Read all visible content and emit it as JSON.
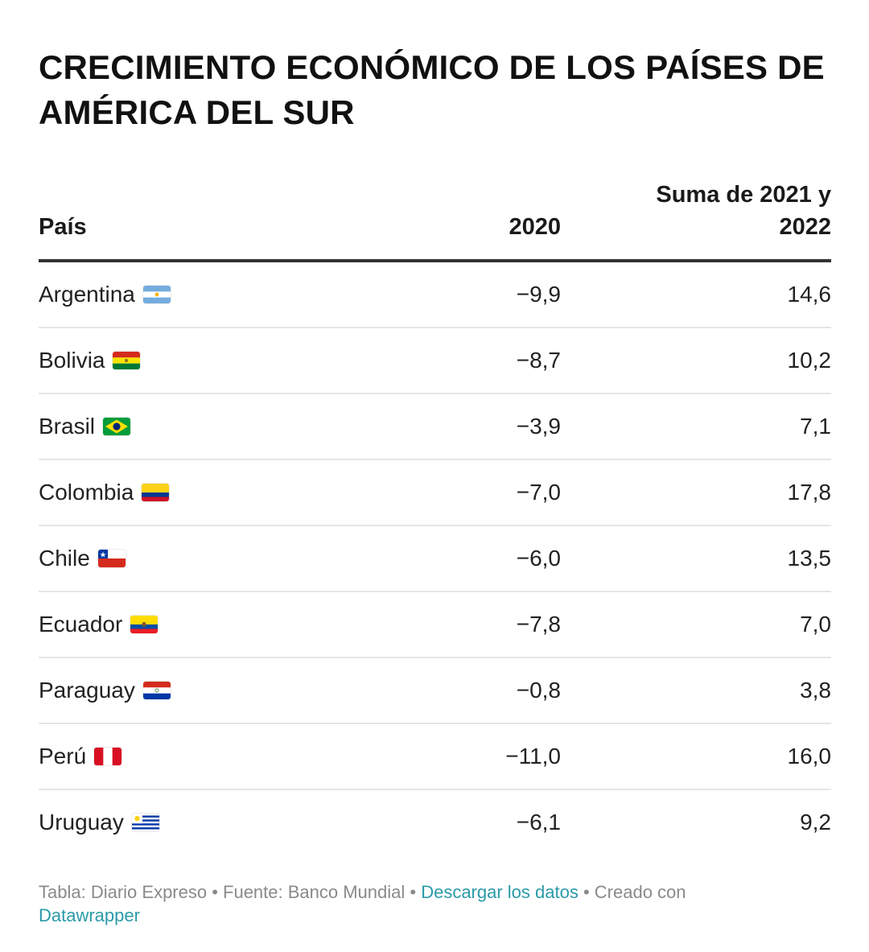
{
  "chart_data": {
    "type": "table",
    "title": "CRECIMIENTO ECONÓMICO DE LOS PAÍSES DE AMÉRICA DEL SUR",
    "columns": [
      "País",
      "2020",
      "Suma de 2021 y 2022"
    ],
    "rows": [
      {
        "country": "Argentina",
        "flag": "argentina-flag",
        "y2020": "−9,9",
        "sum": "14,6"
      },
      {
        "country": "Bolivia",
        "flag": "bolivia-flag",
        "y2020": "−8,7",
        "sum": "10,2"
      },
      {
        "country": "Brasil",
        "flag": "brazil-flag",
        "y2020": "−3,9",
        "sum": "7,1"
      },
      {
        "country": "Colombia",
        "flag": "colombia-flag",
        "y2020": "−7,0",
        "sum": "17,8"
      },
      {
        "country": "Chile",
        "flag": "chile-flag",
        "y2020": "−6,0",
        "sum": "13,5"
      },
      {
        "country": "Ecuador",
        "flag": "ecuador-flag",
        "y2020": "−7,8",
        "sum": "7,0"
      },
      {
        "country": "Paraguay",
        "flag": "paraguay-flag",
        "y2020": "−0,8",
        "sum": "3,8"
      },
      {
        "country": "Perú",
        "flag": "peru-flag",
        "y2020": "−11,0",
        "sum": "16,0"
      },
      {
        "country": "Uruguay",
        "flag": "uruguay-flag",
        "y2020": "−6,1",
        "sum": "9,2"
      }
    ]
  },
  "footer": {
    "source_text": "Tabla: Diario Expreso • Fuente: Banco Mundial • ",
    "download_link": "Descargar los datos",
    "created_text": " • Creado con ",
    "datawrapper_link": "Datawrapper"
  },
  "colors": {
    "link": "#2a9aa8",
    "header_rule": "#333333",
    "row_rule": "#e6e6e6"
  }
}
